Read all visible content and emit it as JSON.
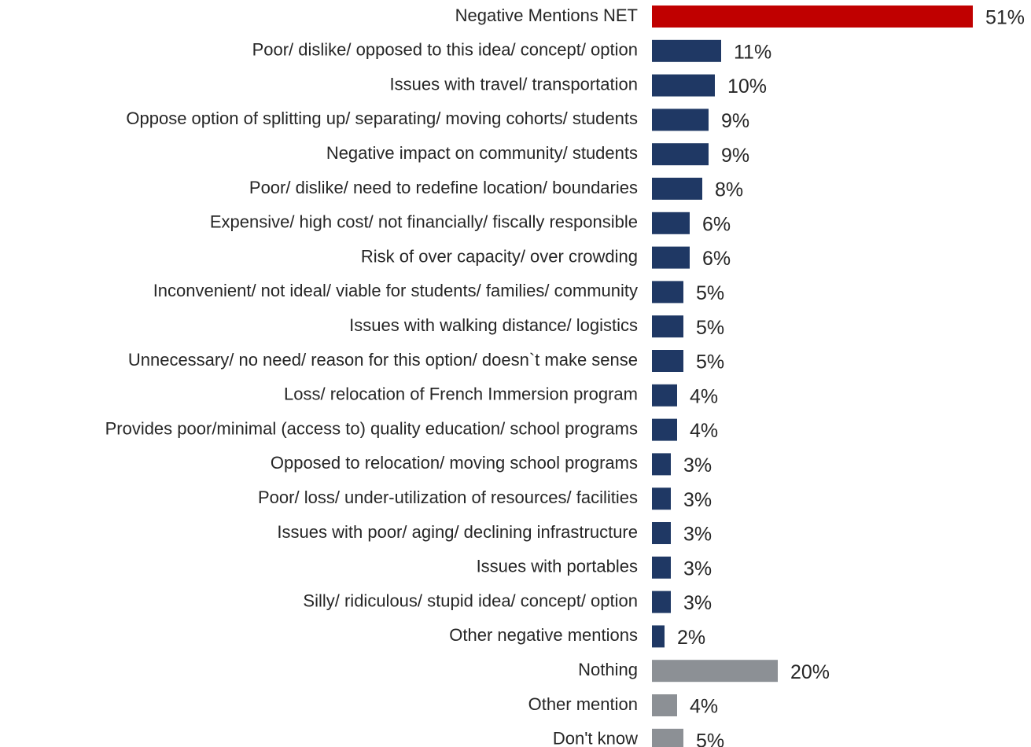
{
  "chart_data": {
    "type": "bar",
    "orientation": "horizontal",
    "title": "",
    "xlabel": "",
    "ylabel": "",
    "xlim": [
      0,
      51
    ],
    "grid": false,
    "legend": "none",
    "value_suffix": "%",
    "colors": {
      "net": "#C00000",
      "negative": "#1F3864",
      "other": "#8C9095"
    },
    "categories": [
      "Negative Mentions NET",
      "Poor/ dislike/ opposed to this idea/ concept/ option",
      "Issues with travel/ transportation",
      "Oppose option of splitting up/ separating/ moving cohorts/ students",
      "Negative impact on community/ students",
      "Poor/ dislike/ need to redefine location/ boundaries",
      "Expensive/ high cost/ not financially/ fiscally responsible",
      "Risk of over capacity/ over crowding",
      "Inconvenient/ not ideal/ viable for students/ families/ community",
      "Issues with walking distance/ logistics",
      "Unnecessary/ no need/ reason for this option/ doesn`t make sense",
      "Loss/ relocation of French Immersion program",
      "Provides poor/minimal (access to) quality education/ school programs",
      "Opposed to relocation/ moving school programs",
      "Poor/ loss/ under-utilization of resources/ facilities",
      "Issues with poor/ aging/ declining infrastructure",
      "Issues with portables",
      "Silly/ ridiculous/ stupid idea/ concept/ option",
      "Other negative mentions",
      "Nothing",
      "Other mention",
      "Don't know"
    ],
    "values": [
      51,
      11,
      10,
      9,
      9,
      8,
      6,
      6,
      5,
      5,
      5,
      4,
      4,
      3,
      3,
      3,
      3,
      3,
      2,
      20,
      4,
      5
    ],
    "groups": [
      "net",
      "negative",
      "negative",
      "negative",
      "negative",
      "negative",
      "negative",
      "negative",
      "negative",
      "negative",
      "negative",
      "negative",
      "negative",
      "negative",
      "negative",
      "negative",
      "negative",
      "negative",
      "negative",
      "other",
      "other",
      "other"
    ]
  }
}
